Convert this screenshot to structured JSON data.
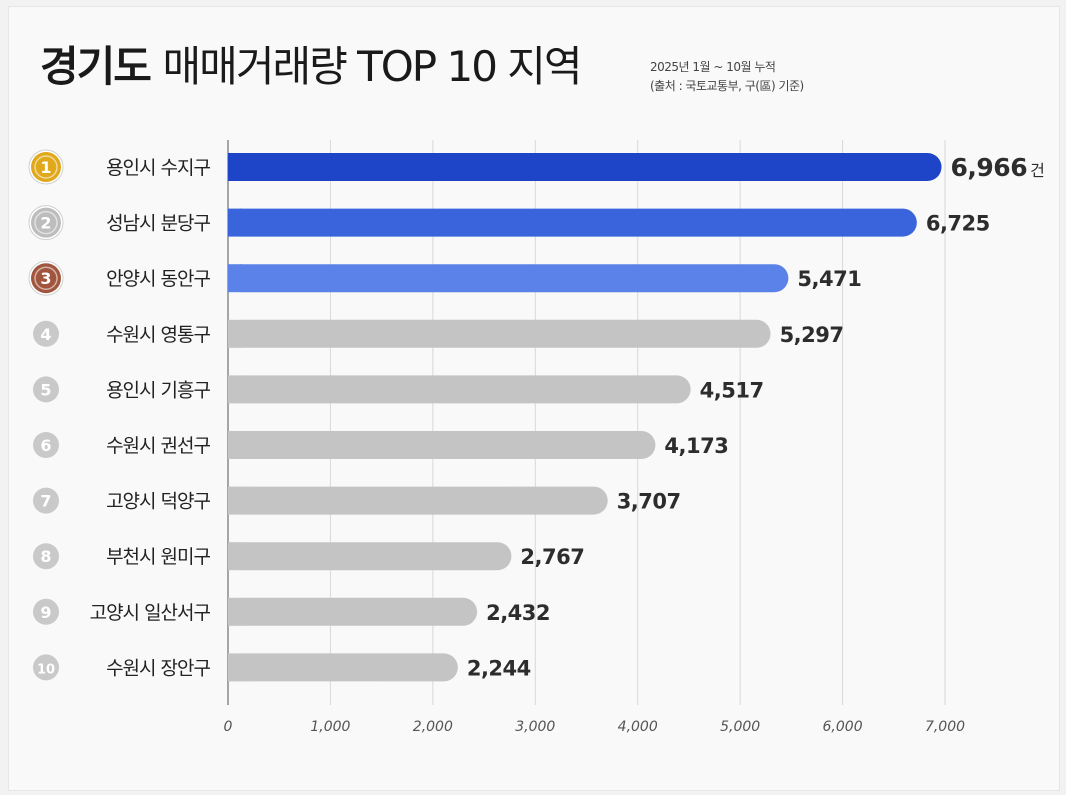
{
  "title": {
    "region": "경기도",
    "rest": "매매거래량 TOP 10 지역"
  },
  "subtitle": {
    "period": "2025년 1월 ~ 10월 누적",
    "source": "(출처 : 국토교통부, 구(區) 기준)"
  },
  "unit_label": "건",
  "colors": {
    "rank1": "#1e45c8",
    "rank2": "#3a64dc",
    "rank3": "#5a82e8",
    "other": "#c4c4c4",
    "gold": "#e0a91c",
    "silver": "#bdbdbd",
    "bronze": "#a0553c",
    "axis": "#8a8a8a",
    "grid": "#d8d8d8"
  },
  "chart_data": {
    "type": "bar",
    "orientation": "horizontal",
    "title": "경기도 매매거래량 TOP 10 지역",
    "categories": [
      "용인시 수지구",
      "성남시 분당구",
      "안양시 동안구",
      "수원시 영통구",
      "용인시 기흥구",
      "수원시 권선구",
      "고양시 덕양구",
      "부천시 원미구",
      "고양시 일산서구",
      "수원시 장안구"
    ],
    "ranks": [
      "1",
      "2",
      "3",
      "4",
      "5",
      "6",
      "7",
      "8",
      "9",
      "10"
    ],
    "values": [
      6966,
      6725,
      5471,
      5297,
      4517,
      4173,
      3707,
      2767,
      2432,
      2244
    ],
    "value_labels": [
      "6,966",
      "6,725",
      "5,471",
      "5,297",
      "4,517",
      "4,173",
      "3,707",
      "2,767",
      "2,432",
      "2,244"
    ],
    "xlim": [
      0,
      7000
    ],
    "xticks": [
      0,
      1000,
      2000,
      3000,
      4000,
      5000,
      6000,
      7000
    ],
    "xtick_labels": [
      "0",
      "1,000",
      "2,000",
      "3,000",
      "4,000",
      "5,000",
      "6,000",
      "7,000"
    ],
    "xlabel": "",
    "ylabel": "",
    "grid": true
  }
}
